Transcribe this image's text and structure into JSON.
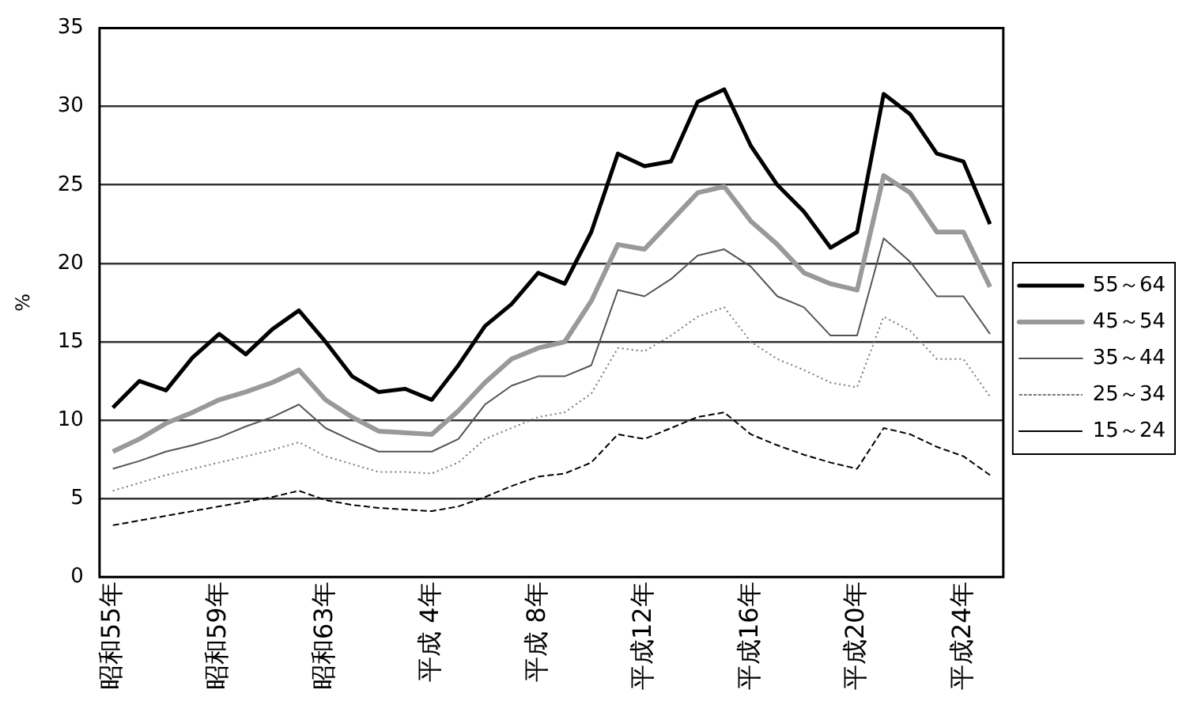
{
  "chart_data": {
    "type": "line",
    "ylabel": "%",
    "ylim": [
      0,
      35
    ],
    "yticks": [
      0,
      5,
      10,
      15,
      20,
      25,
      30,
      35
    ],
    "categories": [
      "昭和55年",
      null,
      null,
      null,
      "昭和59年",
      null,
      null,
      null,
      "昭和63年",
      null,
      null,
      null,
      "平成 4年",
      null,
      null,
      null,
      "平成 8年",
      null,
      null,
      null,
      "平成12年",
      null,
      null,
      null,
      "平成16年",
      null,
      null,
      null,
      "平成20年",
      null,
      null,
      null,
      "平成24年",
      null
    ],
    "grid": "y",
    "legend": "right",
    "marker": "none",
    "series": [
      {
        "name": "55～64",
        "color": "#000000",
        "line_style": "solid",
        "values": [
          10.8,
          12.5,
          11.9,
          14.0,
          15.5,
          14.2,
          15.8,
          17.0,
          15.0,
          12.8,
          11.8,
          12.0,
          11.3,
          13.5,
          16.0,
          17.4,
          19.4,
          18.7,
          22.0,
          27.0,
          26.2,
          26.5,
          30.3,
          31.1,
          27.5,
          25.0,
          23.3,
          21.0,
          22.0,
          30.8,
          29.5,
          27.0,
          26.5,
          22.5
        ]
      },
      {
        "name": "45～54",
        "color": "#999999",
        "line_style": "solid",
        "values": [
          8.0,
          8.8,
          9.8,
          10.5,
          11.3,
          11.8,
          12.4,
          13.2,
          11.3,
          10.2,
          9.3,
          9.2,
          9.1,
          10.6,
          12.4,
          13.9,
          14.6,
          15.0,
          17.6,
          21.2,
          20.9,
          22.7,
          24.5,
          24.9,
          22.7,
          21.2,
          19.4,
          18.7,
          18.3,
          25.6,
          24.5,
          22.0,
          22.0,
          18.5
        ]
      },
      {
        "name": "35～44",
        "color": "#555555",
        "line_style": "solid",
        "values": [
          6.9,
          7.4,
          8.0,
          8.4,
          8.9,
          9.6,
          10.2,
          11.0,
          9.5,
          8.7,
          8.0,
          8.0,
          8.0,
          8.8,
          11.0,
          12.2,
          12.8,
          12.8,
          13.5,
          18.3,
          17.9,
          19.0,
          20.5,
          20.9,
          19.8,
          17.9,
          17.2,
          15.4,
          15.4,
          21.6,
          20.1,
          17.9,
          17.9,
          15.5
        ]
      },
      {
        "name": "25～34",
        "color": "#777777",
        "line_style": "dotted",
        "values": [
          5.5,
          6.0,
          6.5,
          6.9,
          7.3,
          7.7,
          8.1,
          8.6,
          7.7,
          7.2,
          6.7,
          6.7,
          6.6,
          7.3,
          8.8,
          9.5,
          10.2,
          10.5,
          11.7,
          14.6,
          14.4,
          15.4,
          16.6,
          17.2,
          15.0,
          13.9,
          13.2,
          12.4,
          12.1,
          16.6,
          15.7,
          13.9,
          13.9,
          11.5
        ]
      },
      {
        "name": "15～24",
        "color": "#000000",
        "line_style": "dashed",
        "values": [
          3.3,
          3.6,
          3.9,
          4.2,
          4.5,
          4.8,
          5.1,
          5.5,
          4.9,
          4.6,
          4.4,
          4.3,
          4.2,
          4.5,
          5.1,
          5.8,
          6.4,
          6.6,
          7.3,
          9.1,
          8.8,
          9.5,
          10.2,
          10.5,
          9.1,
          8.4,
          7.8,
          7.3,
          6.9,
          9.5,
          9.1,
          8.3,
          7.7,
          6.5
        ]
      }
    ]
  }
}
